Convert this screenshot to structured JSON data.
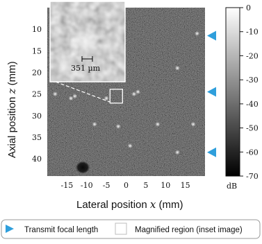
{
  "chart_data": {
    "type": "heatmap",
    "xlabel": "Lateral position x (mm)",
    "ylabel": "Axial position z (mm)",
    "x_ticks": [
      -15,
      -10,
      -5,
      0,
      5,
      10,
      15
    ],
    "y_ticks": [
      10,
      15,
      20,
      25,
      30,
      35,
      40
    ],
    "xlim": [
      -20,
      20
    ],
    "ylim": [
      5,
      44
    ],
    "colorbar": {
      "ticks": [
        0,
        -10,
        -20,
        -30,
        -40,
        -50,
        -60,
        -70
      ],
      "unit": "dB",
      "range": [
        -70,
        0
      ]
    },
    "transmit_focal_depths_mm": [
      11.5,
      24.5,
      38.5
    ],
    "scatterers": [
      {
        "x": -18,
        "z": 25
      },
      {
        "x": -14,
        "z": 26
      },
      {
        "x": -13,
        "z": 25.5
      },
      {
        "x": -5,
        "z": 26
      },
      {
        "x": 2,
        "z": 25
      },
      {
        "x": 3,
        "z": 24.5
      },
      {
        "x": 13,
        "z": 19
      },
      {
        "x": 18,
        "z": 11
      },
      {
        "x": -8,
        "z": 32
      },
      {
        "x": -2,
        "z": 32.5
      },
      {
        "x": 8,
        "z": 32
      },
      {
        "x": 17,
        "z": 32
      },
      {
        "x": 1,
        "z": 37
      },
      {
        "x": 13,
        "z": 38.5
      }
    ],
    "cyst": {
      "x": -11,
      "z": 42
    },
    "inset": {
      "scale_bar_label": "351 µm",
      "region_center": {
        "x": -2.5,
        "z": 25.5
      }
    }
  },
  "legend": {
    "items": [
      {
        "label": "Transmit focal length",
        "marker": "blue-triangle",
        "color": "#2f9fdc"
      },
      {
        "label": "Magnified region (inset image)",
        "marker": "white-square",
        "color": "#ffffff"
      }
    ]
  }
}
